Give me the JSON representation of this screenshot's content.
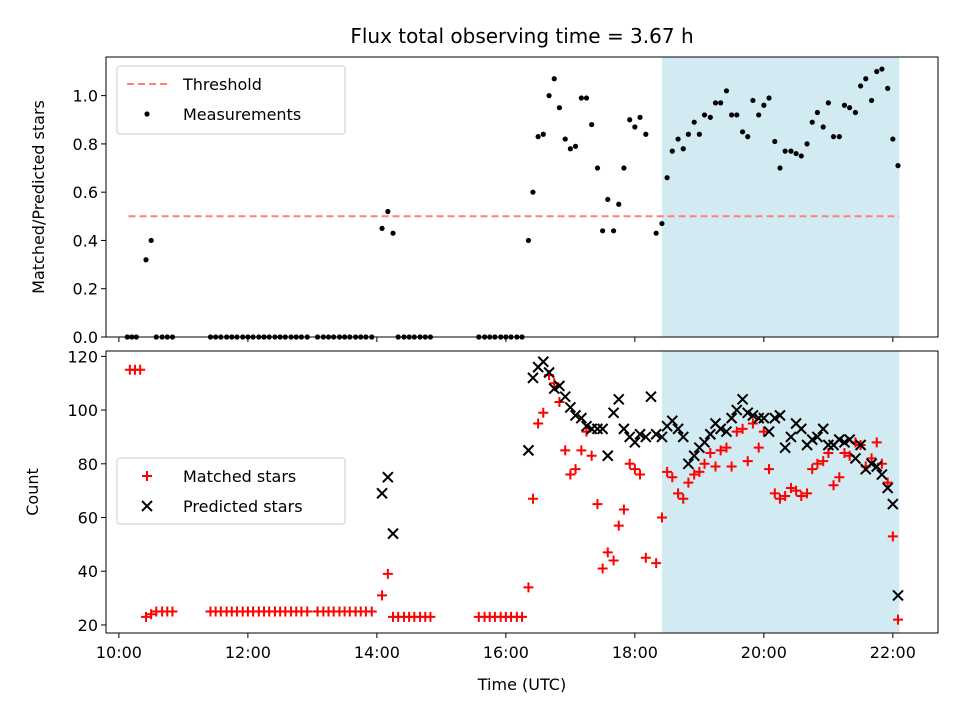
{
  "figure": {
    "title": "Flux total observing time = 3.67 h",
    "xlabel": "Time (UTC)"
  },
  "chart_data": [
    {
      "type": "scatter",
      "ylabel": "Matched/Predicted stars",
      "xlim": [
        9.8,
        22.7
      ],
      "ylim": [
        0,
        1.16
      ],
      "yticks": [
        0.0,
        0.2,
        0.4,
        0.6,
        0.8,
        1.0
      ],
      "ytick_labels": [
        "0.0",
        "0.2",
        "0.4",
        "0.6",
        "0.8",
        "1.0"
      ],
      "xticks": [
        10,
        12,
        14,
        16,
        18,
        20,
        22
      ],
      "xtick_labels": [
        "10:00",
        "12:00",
        "14:00",
        "16:00",
        "18:00",
        "20:00",
        "22:00"
      ],
      "show_xtick_labels": false,
      "highlight_span": {
        "x0": 18.42,
        "x1": 22.1,
        "color": "#add8e6"
      },
      "legend_position": "upper-left",
      "threshold": {
        "name": "Threshold",
        "y": 0.5,
        "x0": 10.15,
        "x1": 22.1,
        "color": "#ff7f7f"
      },
      "series": [
        {
          "name": "Measurements",
          "color": "#000000",
          "x": [
            10.13,
            10.2,
            10.27,
            10.42,
            10.5,
            10.58,
            10.67,
            10.75,
            10.83,
            11.42,
            11.5,
            11.58,
            11.67,
            11.75,
            11.83,
            11.92,
            12.0,
            12.08,
            12.17,
            12.25,
            12.33,
            12.42,
            12.5,
            12.58,
            12.67,
            12.75,
            12.83,
            12.92,
            13.08,
            13.17,
            13.25,
            13.33,
            13.42,
            13.5,
            13.58,
            13.67,
            13.75,
            13.83,
            13.92,
            14.08,
            14.17,
            14.25,
            14.33,
            14.42,
            14.5,
            14.58,
            14.67,
            14.75,
            14.83,
            15.58,
            15.67,
            15.75,
            15.83,
            15.92,
            16.0,
            16.08,
            16.17,
            16.25,
            16.35,
            16.42,
            16.5,
            16.58,
            16.67,
            16.75,
            16.83,
            16.92,
            17.0,
            17.08,
            17.17,
            17.25,
            17.33,
            17.42,
            17.5,
            17.58,
            17.67,
            17.75,
            17.83,
            17.92,
            18.0,
            18.08,
            18.17,
            18.33,
            18.42,
            18.5,
            18.58,
            18.67,
            18.75,
            18.83,
            18.92,
            19.0,
            19.08,
            19.17,
            19.25,
            19.33,
            19.42,
            19.5,
            19.58,
            19.67,
            19.75,
            19.83,
            19.92,
            20.0,
            20.08,
            20.17,
            20.25,
            20.33,
            20.42,
            20.5,
            20.58,
            20.67,
            20.75,
            20.83,
            20.92,
            21.0,
            21.08,
            21.17,
            21.25,
            21.33,
            21.42,
            21.5,
            21.58,
            21.67,
            21.75,
            21.83,
            21.92,
            22.0,
            22.08
          ],
          "y": [
            0,
            0,
            0,
            0.32,
            0.4,
            0,
            0,
            0,
            0,
            0,
            0,
            0,
            0,
            0,
            0,
            0,
            0,
            0,
            0,
            0,
            0,
            0,
            0,
            0,
            0,
            0,
            0,
            0,
            0,
            0,
            0,
            0,
            0,
            0,
            0,
            0,
            0,
            0,
            0,
            0.45,
            0.52,
            0.43,
            0,
            0,
            0,
            0,
            0,
            0,
            0,
            0,
            0,
            0,
            0,
            0,
            0,
            0,
            0,
            0,
            0.4,
            0.6,
            0.83,
            0.84,
            1.0,
            1.07,
            0.95,
            0.82,
            0.78,
            0.79,
            0.99,
            0.99,
            0.88,
            0.7,
            0.44,
            0.57,
            0.44,
            0.55,
            0.7,
            0.9,
            0.87,
            0.91,
            0.84,
            0.43,
            0.47,
            0.66,
            0.77,
            0.82,
            0.78,
            0.84,
            0.89,
            0.84,
            0.92,
            0.91,
            0.97,
            0.97,
            1.02,
            0.92,
            0.92,
            0.85,
            0.83,
            0.98,
            0.92,
            0.96,
            0.99,
            0.81,
            0.7,
            0.77,
            0.77,
            0.76,
            0.75,
            0.8,
            0.89,
            0.93,
            0.87,
            0.97,
            0.83,
            0.83,
            0.96,
            0.95,
            0.93,
            1.04,
            1.07,
            0.98,
            1.1,
            1.11,
            1.03,
            0.82,
            0.71
          ]
        }
      ]
    },
    {
      "type": "scatter",
      "ylabel": "Count",
      "xlim": [
        9.8,
        22.7
      ],
      "ylim": [
        17,
        122
      ],
      "yticks": [
        20,
        40,
        60,
        80,
        100,
        120
      ],
      "ytick_labels": [
        "20",
        "40",
        "60",
        "80",
        "100",
        "120"
      ],
      "xticks": [
        10,
        12,
        14,
        16,
        18,
        20,
        22
      ],
      "xtick_labels": [
        "10:00",
        "12:00",
        "14:00",
        "16:00",
        "18:00",
        "20:00",
        "22:00"
      ],
      "show_xtick_labels": true,
      "highlight_span": {
        "x0": 18.42,
        "x1": 22.1,
        "color": "#add8e6"
      },
      "legend_position": "center-left",
      "series": [
        {
          "name": "Matched stars",
          "marker": "plus",
          "color": "#ff0000",
          "x": [
            10.17,
            10.25,
            10.33,
            10.42,
            10.5,
            10.58,
            10.67,
            10.75,
            10.83,
            11.42,
            11.5,
            11.58,
            11.67,
            11.75,
            11.83,
            11.92,
            12.0,
            12.08,
            12.17,
            12.25,
            12.33,
            12.42,
            12.5,
            12.58,
            12.67,
            12.75,
            12.83,
            12.92,
            13.08,
            13.17,
            13.25,
            13.33,
            13.42,
            13.5,
            13.58,
            13.67,
            13.75,
            13.83,
            13.92,
            14.08,
            14.17,
            14.25,
            14.33,
            14.42,
            14.5,
            14.58,
            14.67,
            14.75,
            14.83,
            15.58,
            15.67,
            15.75,
            15.83,
            15.92,
            16.0,
            16.08,
            16.17,
            16.25,
            16.35,
            16.42,
            16.5,
            16.58,
            16.67,
            16.75,
            16.83,
            16.92,
            17.0,
            17.08,
            17.17,
            17.25,
            17.33,
            17.42,
            17.5,
            17.58,
            17.67,
            17.75,
            17.83,
            17.92,
            18.0,
            18.08,
            18.17,
            18.33,
            18.42,
            18.5,
            18.58,
            18.67,
            18.75,
            18.83,
            18.92,
            19.0,
            19.08,
            19.17,
            19.25,
            19.33,
            19.42,
            19.5,
            19.58,
            19.67,
            19.75,
            19.83,
            19.92,
            20.0,
            20.08,
            20.17,
            20.25,
            20.33,
            20.42,
            20.5,
            20.58,
            20.67,
            20.75,
            20.83,
            20.92,
            21.0,
            21.08,
            21.17,
            21.25,
            21.33,
            21.42,
            21.5,
            21.58,
            21.67,
            21.75,
            21.83,
            21.92,
            22.0,
            22.08
          ],
          "y": [
            115,
            115,
            115,
            23,
            24,
            25,
            25,
            25,
            25,
            25,
            25,
            25,
            25,
            25,
            25,
            25,
            25,
            25,
            25,
            25,
            25,
            25,
            25,
            25,
            25,
            25,
            25,
            25,
            25,
            25,
            25,
            25,
            25,
            25,
            25,
            25,
            25,
            25,
            25,
            31,
            39,
            23,
            23,
            23,
            23,
            23,
            23,
            23,
            23,
            23,
            23,
            23,
            23,
            23,
            23,
            23,
            23,
            23,
            34,
            67,
            95,
            99,
            113,
            110,
            103,
            85,
            76,
            78,
            85,
            92,
            83,
            65,
            41,
            47,
            44,
            57,
            63,
            80,
            78,
            76,
            45,
            43,
            60,
            77,
            75,
            69,
            67,
            73,
            76,
            77,
            80,
            84,
            79,
            85,
            86,
            79,
            92,
            93,
            81,
            95,
            86,
            92,
            78,
            69,
            67,
            68,
            71,
            70,
            68,
            69,
            78,
            80,
            81,
            84,
            72,
            75,
            84,
            83,
            88,
            87,
            79,
            82,
            88,
            80,
            73,
            53,
            22
          ]
        },
        {
          "name": "Predicted stars",
          "marker": "x",
          "color": "#000000",
          "x": [
            14.08,
            14.17,
            14.25,
            16.35,
            16.42,
            16.5,
            16.58,
            16.67,
            16.75,
            16.83,
            16.92,
            17.0,
            17.08,
            17.17,
            17.25,
            17.33,
            17.42,
            17.5,
            17.58,
            17.67,
            17.75,
            17.83,
            17.92,
            18.0,
            18.08,
            18.17,
            18.25,
            18.33,
            18.42,
            18.5,
            18.58,
            18.67,
            18.75,
            18.83,
            18.92,
            19.0,
            19.08,
            19.17,
            19.25,
            19.33,
            19.42,
            19.5,
            19.58,
            19.67,
            19.75,
            19.83,
            19.92,
            20.0,
            20.08,
            20.17,
            20.25,
            20.33,
            20.42,
            20.5,
            20.58,
            20.67,
            20.75,
            20.83,
            20.92,
            21.0,
            21.08,
            21.17,
            21.25,
            21.33,
            21.42,
            21.5,
            21.58,
            21.67,
            21.75,
            21.83,
            21.92,
            22.0,
            22.08
          ],
          "y": [
            69,
            75,
            54,
            85,
            112,
            116,
            118,
            114,
            108,
            109,
            105,
            101,
            98,
            97,
            94,
            93,
            93,
            93,
            83,
            99,
            104,
            93,
            90,
            88,
            91,
            90,
            105,
            91,
            90,
            94,
            96,
            93,
            90,
            80,
            83,
            86,
            88,
            91,
            95,
            93,
            92,
            97,
            100,
            104,
            99,
            98,
            97,
            97,
            92,
            97,
            98,
            86,
            90,
            95,
            93,
            87,
            89,
            90,
            93,
            87,
            87,
            89,
            88,
            89,
            82,
            87,
            78,
            80,
            79,
            76,
            71,
            65,
            31
          ]
        }
      ]
    }
  ]
}
